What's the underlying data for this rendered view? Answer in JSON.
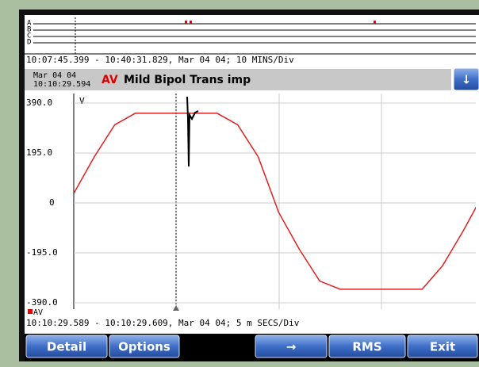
{
  "strip": {
    "channels": [
      "A",
      "B",
      "C",
      "D"
    ],
    "time_range": "10:07:45.399 - 10:40:31.829, Mar 04 04;   10 MINS/Div"
  },
  "header": {
    "date": "Mar 04 04",
    "time": "10:10:29.594",
    "channel": "AV",
    "description": "Mild Bipol Trans imp",
    "scroll_button": "↓"
  },
  "chart_data": {
    "type": "line",
    "ylabel": "V",
    "time_range": "10:10:29.589 - 10:10:29.609, Mar 04 04;   5 m SECS/Div",
    "x": [
      0,
      1,
      2,
      3,
      4,
      5,
      6,
      7,
      8,
      9,
      10,
      11,
      12,
      13,
      14,
      15,
      16,
      17,
      18,
      19,
      20
    ],
    "series": [
      {
        "name": "AV",
        "color": "#e02020",
        "values": [
          37,
          180,
          305,
          350,
          350,
          350,
          350,
          350,
          305,
          180,
          -37,
          -180,
          -305,
          -337,
          -337,
          -337,
          -337,
          -337,
          -245,
          -110,
          37
        ]
      }
    ],
    "xlim": [
      0,
      20
    ],
    "ylim": [
      -390,
      390
    ],
    "yticks": [
      {
        "value": -390,
        "label": "-390.0"
      },
      {
        "value": -195,
        "label": "-195.0"
      },
      0,
      {
        "value": 195,
        "label": "195.0"
      },
      {
        "value": 390,
        "label": "390.0"
      }
    ],
    "grid": true
  },
  "buttons": [
    "Detail",
    "Options",
    "→",
    "RMS",
    "Exit"
  ]
}
